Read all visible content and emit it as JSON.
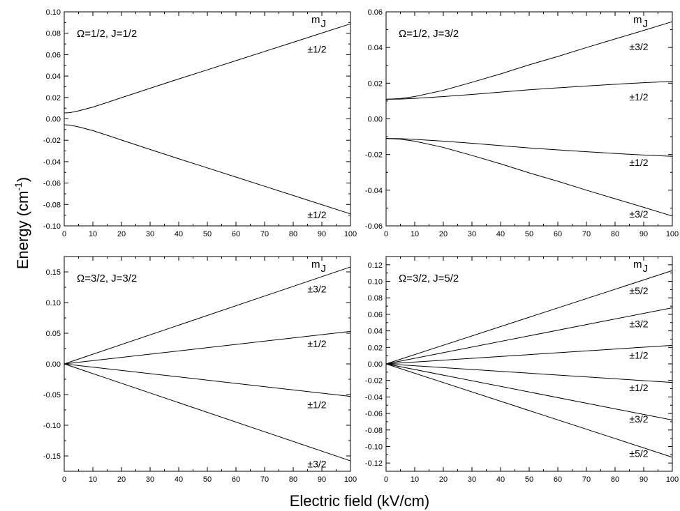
{
  "ylabel": "Energy (cm",
  "ylabel_sup": "-1",
  "ylabel_end": ")",
  "xlabel": "Electric field (kV/cm)",
  "chart_data": [
    {
      "type": "line",
      "title": "Ω=1/2, J=1/2",
      "legend_header": "mJ",
      "xlim": [
        0,
        100
      ],
      "ylim": [
        -0.1,
        0.1
      ],
      "xticks": [
        0,
        10,
        20,
        30,
        40,
        50,
        60,
        70,
        80,
        90,
        100
      ],
      "yticks": [
        -0.1,
        -0.08,
        -0.06,
        -0.04,
        -0.02,
        0.0,
        0.02,
        0.04,
        0.06,
        0.08,
        0.1
      ],
      "ytick_labels": [
        "-0.10",
        "-0.08",
        "-0.06",
        "-0.04",
        "-0.02",
        "0.00",
        "0.02",
        "0.04",
        "0.06",
        "0.08",
        "0.10"
      ],
      "series": [
        {
          "label": "±1/2",
          "label_y": 0.065,
          "x": [
            0,
            2,
            5,
            10,
            15,
            20,
            30,
            40,
            50,
            60,
            70,
            80,
            90,
            100
          ],
          "y": [
            0.0055,
            0.0058,
            0.0075,
            0.011,
            0.0153,
            0.0198,
            0.0286,
            0.0373,
            0.0458,
            0.0544,
            0.063,
            0.0716,
            0.0802,
            0.0888
          ]
        },
        {
          "label": "±1/2",
          "label_y": -0.0895,
          "x": [
            0,
            2,
            5,
            10,
            15,
            20,
            30,
            40,
            50,
            60,
            70,
            80,
            90,
            100
          ],
          "y": [
            -0.0055,
            -0.0058,
            -0.0075,
            -0.011,
            -0.0153,
            -0.0198,
            -0.0286,
            -0.0373,
            -0.0458,
            -0.0544,
            -0.063,
            -0.0716,
            -0.0802,
            -0.0888
          ]
        }
      ]
    },
    {
      "type": "line",
      "title": "Ω=1/2, J=3/2",
      "legend_header": "mJ",
      "xlim": [
        0,
        100
      ],
      "ylim": [
        -0.06,
        0.06
      ],
      "xticks": [
        0,
        10,
        20,
        30,
        40,
        50,
        60,
        70,
        80,
        90,
        100
      ],
      "yticks": [
        -0.06,
        -0.04,
        -0.02,
        0.0,
        0.02,
        0.04,
        0.06
      ],
      "ytick_labels": [
        "-0.06",
        "-0.04",
        "-0.02",
        "0.00",
        "0.02",
        "0.04",
        "0.06"
      ],
      "series": [
        {
          "label": "±3/2",
          "label_y": 0.0405,
          "x": [
            0,
            5,
            10,
            20,
            30,
            40,
            50,
            60,
            70,
            80,
            90,
            100
          ],
          "y": [
            0.011,
            0.0114,
            0.0125,
            0.016,
            0.0205,
            0.0252,
            0.0303,
            0.035,
            0.04,
            0.0448,
            0.0496,
            0.0545
          ]
        },
        {
          "label": "±1/2",
          "label_y": 0.0123,
          "x": [
            0,
            5,
            10,
            20,
            30,
            40,
            50,
            60,
            70,
            80,
            90,
            100
          ],
          "y": [
            0.011,
            0.0111,
            0.0115,
            0.0125,
            0.0137,
            0.015,
            0.0163,
            0.0174,
            0.0184,
            0.0194,
            0.0203,
            0.021
          ]
        },
        {
          "label": "±1/2",
          "label_y": -0.0245,
          "x": [
            0,
            5,
            10,
            20,
            30,
            40,
            50,
            60,
            70,
            80,
            90,
            100
          ],
          "y": [
            -0.011,
            -0.0111,
            -0.0115,
            -0.0125,
            -0.0137,
            -0.015,
            -0.0163,
            -0.0174,
            -0.0184,
            -0.0194,
            -0.0203,
            -0.021
          ]
        },
        {
          "label": "±3/2",
          "label_y": -0.0533,
          "x": [
            0,
            5,
            10,
            20,
            30,
            40,
            50,
            60,
            70,
            80,
            90,
            100
          ],
          "y": [
            -0.011,
            -0.0114,
            -0.0125,
            -0.016,
            -0.0205,
            -0.0252,
            -0.0303,
            -0.035,
            -0.04,
            -0.0448,
            -0.0496,
            -0.0545
          ]
        }
      ]
    },
    {
      "type": "line",
      "title": "Ω=3/2, J=3/2",
      "legend_header": "mJ",
      "xlim": [
        0,
        100
      ],
      "ylim": [
        -0.175,
        0.175
      ],
      "xticks": [
        0,
        10,
        20,
        30,
        40,
        50,
        60,
        70,
        80,
        90,
        100
      ],
      "yticks": [
        -0.15,
        -0.1,
        -0.05,
        0.0,
        0.05,
        0.1,
        0.15
      ],
      "ytick_labels": [
        "-0.15",
        "-0.10",
        "-0.05",
        "0.00",
        "0.05",
        "0.10",
        "0.15"
      ],
      "series": [
        {
          "label": "±3/2",
          "label_y": 0.122,
          "x": [
            0,
            100
          ],
          "y": [
            0.0,
            0.158
          ]
        },
        {
          "label": "±1/2",
          "label_y": 0.033,
          "x": [
            0,
            100
          ],
          "y": [
            0.0,
            0.053
          ]
        },
        {
          "label": "±1/2",
          "label_y": -0.0665,
          "x": [
            0,
            100
          ],
          "y": [
            0.0,
            -0.053
          ]
        },
        {
          "label": "±3/2",
          "label_y": -0.163,
          "x": [
            0,
            100
          ],
          "y": [
            0.0,
            -0.158
          ]
        }
      ]
    },
    {
      "type": "line",
      "title": "Ω=3/2, J=5/2",
      "legend_header": "mJ",
      "xlim": [
        0,
        100
      ],
      "ylim": [
        -0.13,
        0.13
      ],
      "xticks": [
        0,
        10,
        20,
        30,
        40,
        50,
        60,
        70,
        80,
        90,
        100
      ],
      "yticks": [
        -0.12,
        -0.1,
        -0.08,
        -0.06,
        -0.04,
        -0.02,
        0.0,
        0.02,
        0.04,
        0.06,
        0.08,
        0.1,
        0.12
      ],
      "ytick_labels": [
        "-0.12",
        "-0.10",
        "-0.08",
        "-0.06",
        "-0.04",
        "-0.02",
        "0.00",
        "0.02",
        "0.04",
        "0.06",
        "0.08",
        "0.10",
        "0.12"
      ],
      "series": [
        {
          "label": "±5/2",
          "label_y": 0.0885,
          "x": [
            0,
            100
          ],
          "y": [
            0.0,
            0.113
          ]
        },
        {
          "label": "±3/2",
          "label_y": 0.0485,
          "x": [
            0,
            100
          ],
          "y": [
            0.0,
            0.068
          ]
        },
        {
          "label": "±1/2",
          "label_y": 0.0105,
          "x": [
            0,
            100
          ],
          "y": [
            0.0,
            0.0225
          ]
        },
        {
          "label": "±1/2",
          "label_y": -0.0285,
          "x": [
            0,
            100
          ],
          "y": [
            0.0,
            -0.0225
          ]
        },
        {
          "label": "±3/2",
          "label_y": -0.0665,
          "x": [
            0,
            100
          ],
          "y": [
            0.0,
            -0.068
          ]
        },
        {
          "label": "±5/2",
          "label_y": -0.1085,
          "x": [
            0,
            100
          ],
          "y": [
            0.0,
            -0.113
          ]
        }
      ]
    }
  ]
}
